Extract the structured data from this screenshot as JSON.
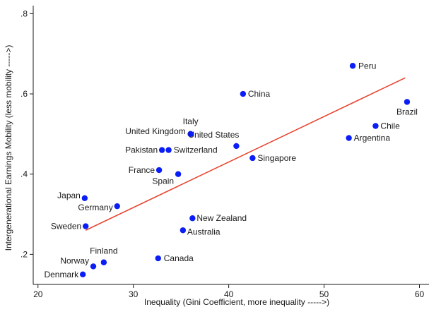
{
  "chart_data": {
    "type": "scatter",
    "title": "",
    "xlabel": "Inequality (Gini Coefficient, more inequality ----->)",
    "ylabel": "Intergenerational Earnings Mobility (less mobility ----->)",
    "xlim": [
      19.5,
      61
    ],
    "ylim": [
      0.125,
      0.82
    ],
    "xticks": [
      20,
      30,
      40,
      50,
      60
    ],
    "xtick_labels": [
      "20",
      "30",
      "40",
      "50",
      "60"
    ],
    "yticks": [
      0.2,
      0.4,
      0.6,
      0.8
    ],
    "ytick_labels": [
      ".2",
      ".4",
      ".6",
      ".8"
    ],
    "grid": false,
    "marker_color": "#0a1ef5",
    "fit_line_color": "#e8402a",
    "points": [
      {
        "label": "Peru",
        "x": 53.0,
        "y": 0.67
      },
      {
        "label": "China",
        "x": 41.5,
        "y": 0.6
      },
      {
        "label": "Brazil",
        "x": 58.7,
        "y": 0.58
      },
      {
        "label": "Chile",
        "x": 55.4,
        "y": 0.52
      },
      {
        "label": "Argentina",
        "x": 52.6,
        "y": 0.49
      },
      {
        "label": "Italy",
        "x": 36.0,
        "y": 0.5
      },
      {
        "label": "United Kingdom",
        "x": 36.0,
        "y": 0.5
      },
      {
        "label": "United States",
        "x": 40.8,
        "y": 0.47
      },
      {
        "label": "Pakistan",
        "x": 33.0,
        "y": 0.46
      },
      {
        "label": "Switzerland",
        "x": 33.7,
        "y": 0.46
      },
      {
        "label": "Singapore",
        "x": 42.5,
        "y": 0.44
      },
      {
        "label": "France",
        "x": 32.7,
        "y": 0.41
      },
      {
        "label": "Spain",
        "x": 34.7,
        "y": 0.4
      },
      {
        "label": "Japan",
        "x": 24.9,
        "y": 0.34
      },
      {
        "label": "Germany",
        "x": 28.3,
        "y": 0.32
      },
      {
        "label": "New Zealand",
        "x": 36.2,
        "y": 0.29
      },
      {
        "label": "Sweden",
        "x": 25.0,
        "y": 0.27
      },
      {
        "label": "Australia",
        "x": 35.2,
        "y": 0.26
      },
      {
        "label": "Canada",
        "x": 32.6,
        "y": 0.19
      },
      {
        "label": "Finland",
        "x": 26.9,
        "y": 0.18
      },
      {
        "label": "Norway",
        "x": 25.8,
        "y": 0.17
      },
      {
        "label": "Denmark",
        "x": 24.7,
        "y": 0.15
      }
    ],
    "fit_line": {
      "x": [
        25.0,
        58.5
      ],
      "y": [
        0.26,
        0.64
      ]
    }
  }
}
